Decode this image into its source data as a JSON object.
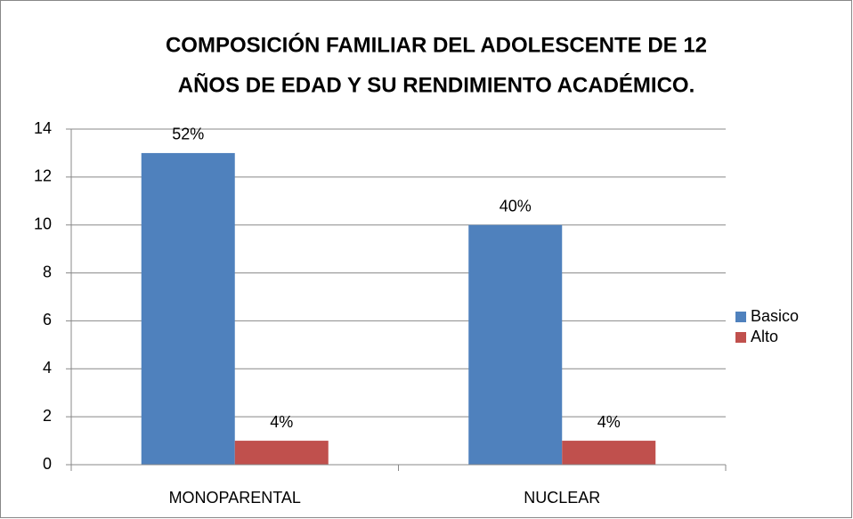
{
  "chart_data": {
    "type": "bar",
    "title": [
      "COMPOSICIÓN FAMILIAR DEL ADOLESCENTE DE 12",
      "AÑOS DE EDAD Y SU RENDIMIENTO ACADÉMICO."
    ],
    "categories": [
      "MONOPARENTAL",
      "NUCLEAR"
    ],
    "series": [
      {
        "name": "Basico",
        "color": "#4f81bd",
        "values": [
          13,
          10
        ],
        "value_labels": [
          "52%",
          "40%"
        ]
      },
      {
        "name": "Alto",
        "color": "#c0504d",
        "values": [
          1,
          1
        ],
        "value_labels": [
          "4%",
          "4%"
        ]
      }
    ],
    "ylim": [
      0,
      14
    ],
    "yticks": [
      0,
      2,
      4,
      6,
      8,
      10,
      12,
      14
    ],
    "grid": true,
    "legend": "right"
  }
}
